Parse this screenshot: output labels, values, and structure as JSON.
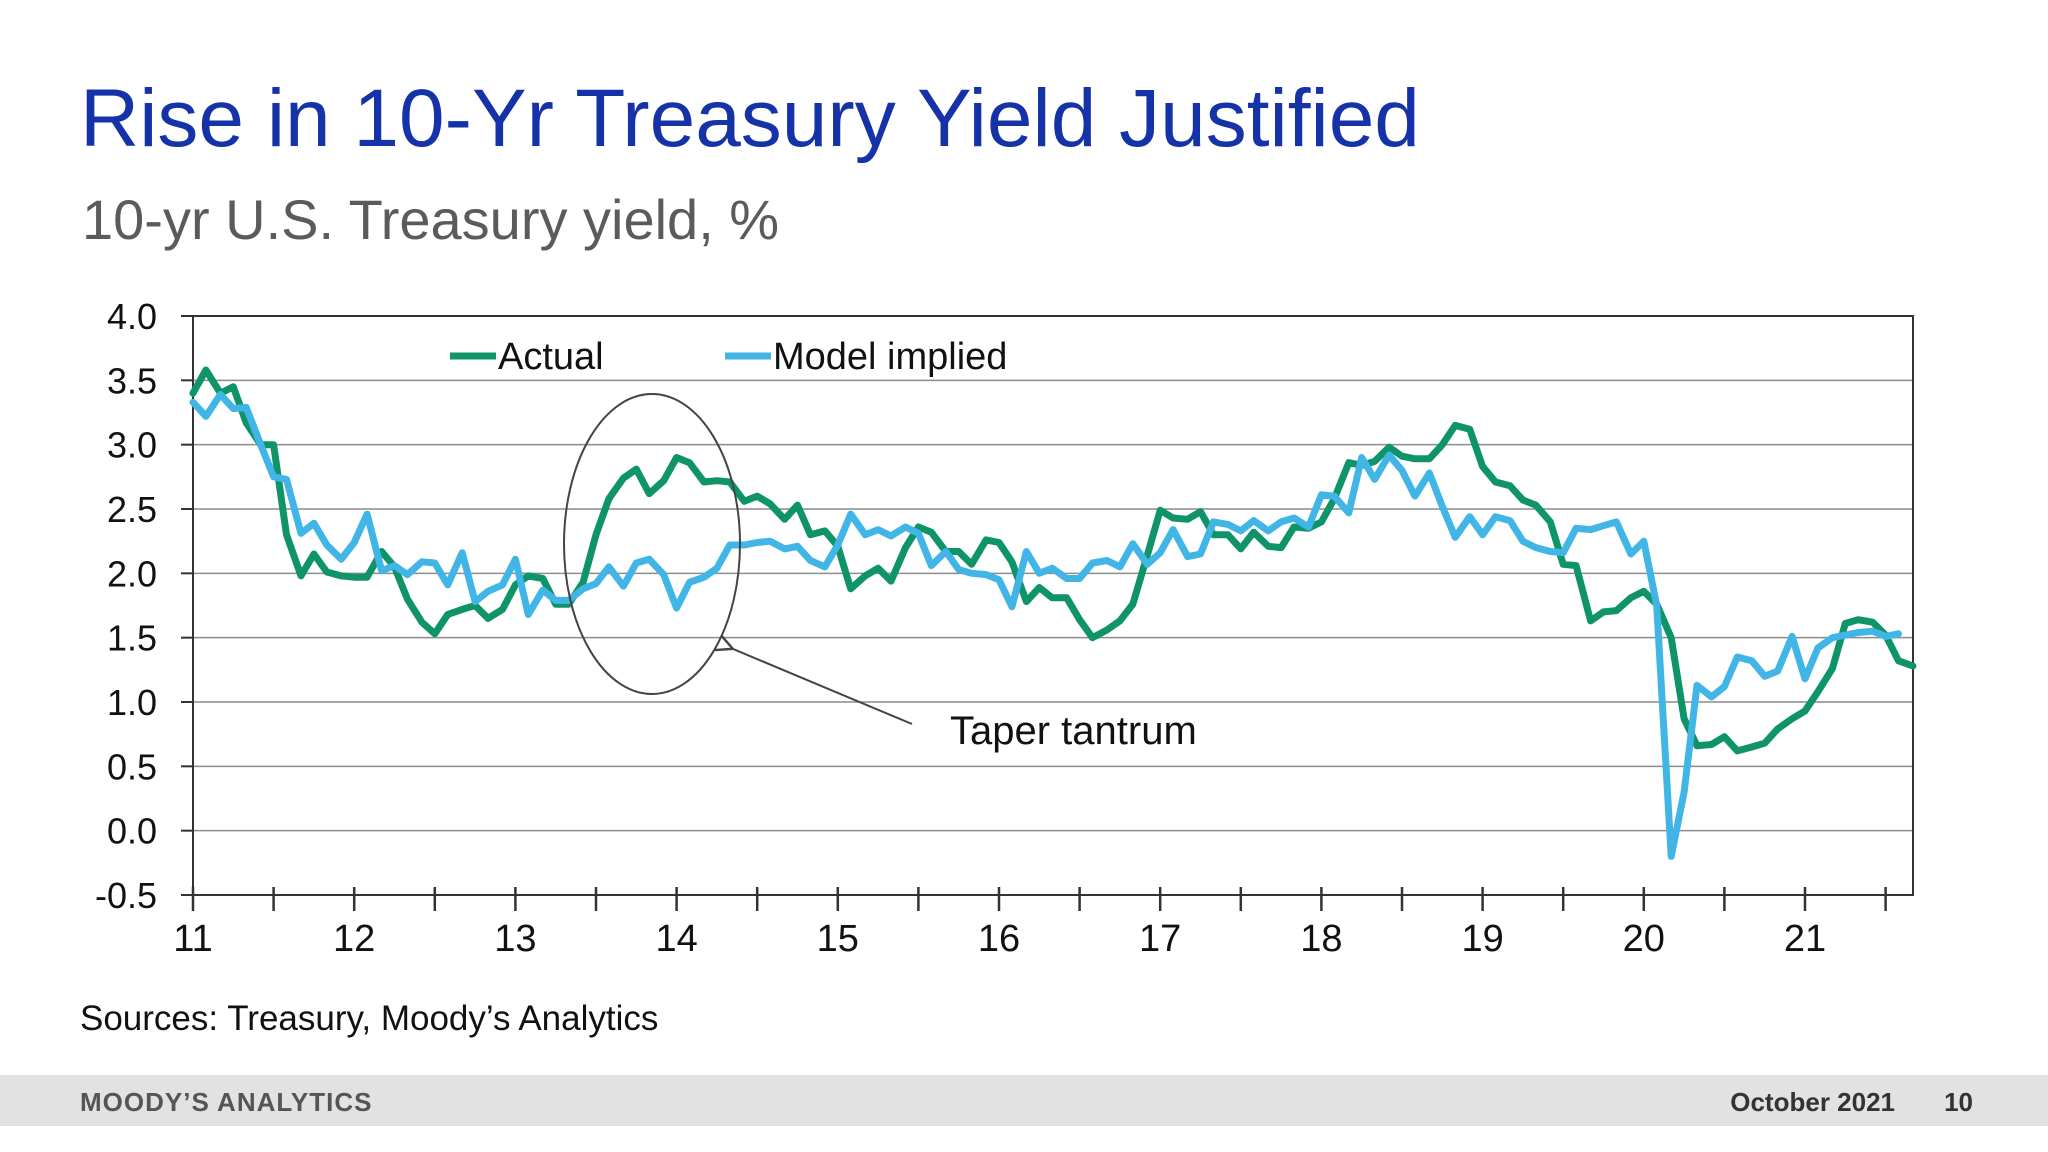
{
  "slide": {
    "title": "Rise in 10-Yr Treasury Yield Justified",
    "subtitle": "10-yr U.S. Treasury yield, %",
    "sources": "Sources: Treasury, Moody’s Analytics",
    "footer": {
      "brand": "MOODY’S ANALYTICS",
      "date": "October 2021",
      "page": "10"
    }
  },
  "chart_data": {
    "type": "line",
    "title": "",
    "xlabel": "",
    "ylabel": "",
    "xlim": [
      2011,
      2021.67
    ],
    "ylim": [
      -0.5,
      4.0
    ],
    "grid": true,
    "legend_placement": "top-left",
    "x_tick_labels": [
      "11",
      "12",
      "13",
      "14",
      "15",
      "16",
      "17",
      "18",
      "19",
      "20",
      "21"
    ],
    "y_tick_labels": [
      "4.0",
      "3.5",
      "3.0",
      "2.5",
      "2.0",
      "1.5",
      "1.0",
      "0.5",
      "0.0",
      "-0.5"
    ],
    "annotation": {
      "text": "Taper tantrum",
      "points_to": [
        2014.3,
        1.45
      ]
    },
    "series": [
      {
        "name": "Actual",
        "color": "#0e9468",
        "points": [
          [
            2011.0,
            3.4
          ],
          [
            2011.08,
            3.58
          ],
          [
            2011.17,
            3.4
          ],
          [
            2011.25,
            3.45
          ],
          [
            2011.33,
            3.17
          ],
          [
            2011.42,
            3.0
          ],
          [
            2011.5,
            3.0
          ],
          [
            2011.58,
            2.3
          ],
          [
            2011.67,
            1.98
          ],
          [
            2011.75,
            2.15
          ],
          [
            2011.83,
            2.01
          ],
          [
            2011.92,
            1.98
          ],
          [
            2012.0,
            1.97
          ],
          [
            2012.08,
            1.97
          ],
          [
            2012.17,
            2.17
          ],
          [
            2012.25,
            2.05
          ],
          [
            2012.33,
            1.8
          ],
          [
            2012.42,
            1.62
          ],
          [
            2012.5,
            1.53
          ],
          [
            2012.58,
            1.68
          ],
          [
            2012.67,
            1.72
          ],
          [
            2012.75,
            1.75
          ],
          [
            2012.83,
            1.65
          ],
          [
            2012.92,
            1.72
          ],
          [
            2013.0,
            1.91
          ],
          [
            2013.08,
            1.98
          ],
          [
            2013.17,
            1.96
          ],
          [
            2013.25,
            1.76
          ],
          [
            2013.33,
            1.76
          ],
          [
            2013.42,
            1.93
          ],
          [
            2013.5,
            2.3
          ],
          [
            2013.58,
            2.58
          ],
          [
            2013.67,
            2.74
          ],
          [
            2013.75,
            2.81
          ],
          [
            2013.83,
            2.62
          ],
          [
            2013.92,
            2.72
          ],
          [
            2014.0,
            2.9
          ],
          [
            2014.08,
            2.86
          ],
          [
            2014.17,
            2.71
          ],
          [
            2014.25,
            2.72
          ],
          [
            2014.33,
            2.71
          ],
          [
            2014.42,
            2.56
          ],
          [
            2014.5,
            2.6
          ],
          [
            2014.58,
            2.54
          ],
          [
            2014.67,
            2.42
          ],
          [
            2014.75,
            2.53
          ],
          [
            2014.83,
            2.3
          ],
          [
            2014.92,
            2.33
          ],
          [
            2015.0,
            2.21
          ],
          [
            2015.08,
            1.88
          ],
          [
            2015.17,
            1.98
          ],
          [
            2015.25,
            2.04
          ],
          [
            2015.33,
            1.94
          ],
          [
            2015.42,
            2.2
          ],
          [
            2015.5,
            2.36
          ],
          [
            2015.58,
            2.32
          ],
          [
            2015.67,
            2.17
          ],
          [
            2015.75,
            2.17
          ],
          [
            2015.83,
            2.07
          ],
          [
            2015.92,
            2.26
          ],
          [
            2016.0,
            2.24
          ],
          [
            2016.08,
            2.09
          ],
          [
            2016.17,
            1.78
          ],
          [
            2016.25,
            1.89
          ],
          [
            2016.33,
            1.81
          ],
          [
            2016.42,
            1.81
          ],
          [
            2016.5,
            1.64
          ],
          [
            2016.58,
            1.5
          ],
          [
            2016.67,
            1.56
          ],
          [
            2016.75,
            1.63
          ],
          [
            2016.83,
            1.76
          ],
          [
            2016.92,
            2.14
          ],
          [
            2017.0,
            2.49
          ],
          [
            2017.08,
            2.43
          ],
          [
            2017.17,
            2.42
          ],
          [
            2017.25,
            2.48
          ],
          [
            2017.33,
            2.3
          ],
          [
            2017.42,
            2.3
          ],
          [
            2017.5,
            2.19
          ],
          [
            2017.58,
            2.32
          ],
          [
            2017.67,
            2.21
          ],
          [
            2017.75,
            2.2
          ],
          [
            2017.83,
            2.36
          ],
          [
            2017.92,
            2.35
          ],
          [
            2018.0,
            2.4
          ],
          [
            2018.08,
            2.58
          ],
          [
            2018.17,
            2.86
          ],
          [
            2018.25,
            2.84
          ],
          [
            2018.33,
            2.87
          ],
          [
            2018.42,
            2.98
          ],
          [
            2018.5,
            2.91
          ],
          [
            2018.58,
            2.89
          ],
          [
            2018.67,
            2.89
          ],
          [
            2018.75,
            3.0
          ],
          [
            2018.83,
            3.15
          ],
          [
            2018.92,
            3.12
          ],
          [
            2019.0,
            2.83
          ],
          [
            2019.08,
            2.71
          ],
          [
            2019.17,
            2.68
          ],
          [
            2019.25,
            2.57
          ],
          [
            2019.33,
            2.53
          ],
          [
            2019.42,
            2.4
          ],
          [
            2019.5,
            2.07
          ],
          [
            2019.58,
            2.06
          ],
          [
            2019.67,
            1.63
          ],
          [
            2019.75,
            1.7
          ],
          [
            2019.83,
            1.71
          ],
          [
            2019.92,
            1.81
          ],
          [
            2020.0,
            1.86
          ],
          [
            2020.08,
            1.76
          ],
          [
            2020.17,
            1.5
          ],
          [
            2020.25,
            0.87
          ],
          [
            2020.33,
            0.66
          ],
          [
            2020.42,
            0.67
          ],
          [
            2020.5,
            0.73
          ],
          [
            2020.58,
            0.62
          ],
          [
            2020.67,
            0.65
          ],
          [
            2020.75,
            0.68
          ],
          [
            2020.83,
            0.79
          ],
          [
            2020.92,
            0.87
          ],
          [
            2021.0,
            0.93
          ],
          [
            2021.08,
            1.08
          ],
          [
            2021.17,
            1.26
          ],
          [
            2021.25,
            1.61
          ],
          [
            2021.33,
            1.64
          ],
          [
            2021.42,
            1.62
          ],
          [
            2021.5,
            1.52
          ],
          [
            2021.58,
            1.32
          ],
          [
            2021.67,
            1.28
          ],
          [
            2021.75,
            1.38
          ]
        ]
      },
      {
        "name": "Model implied",
        "color": "#41b6e6",
        "points": [
          [
            2011.0,
            3.33
          ],
          [
            2011.08,
            3.22
          ],
          [
            2011.17,
            3.39
          ],
          [
            2011.25,
            3.28
          ],
          [
            2011.33,
            3.29
          ],
          [
            2011.42,
            3.0
          ],
          [
            2011.5,
            2.75
          ],
          [
            2011.58,
            2.73
          ],
          [
            2011.67,
            2.31
          ],
          [
            2011.75,
            2.39
          ],
          [
            2011.83,
            2.22
          ],
          [
            2011.92,
            2.11
          ],
          [
            2012.0,
            2.24
          ],
          [
            2012.08,
            2.46
          ],
          [
            2012.17,
            2.02
          ],
          [
            2012.25,
            2.06
          ],
          [
            2012.33,
            1.99
          ],
          [
            2012.42,
            2.09
          ],
          [
            2012.5,
            2.08
          ],
          [
            2012.58,
            1.91
          ],
          [
            2012.67,
            2.16
          ],
          [
            2012.75,
            1.78
          ],
          [
            2012.83,
            1.86
          ],
          [
            2012.92,
            1.91
          ],
          [
            2013.0,
            2.11
          ],
          [
            2013.08,
            1.68
          ],
          [
            2013.17,
            1.87
          ],
          [
            2013.25,
            1.79
          ],
          [
            2013.33,
            1.79
          ],
          [
            2013.42,
            1.88
          ],
          [
            2013.5,
            1.92
          ],
          [
            2013.58,
            2.05
          ],
          [
            2013.67,
            1.9
          ],
          [
            2013.75,
            2.08
          ],
          [
            2013.83,
            2.11
          ],
          [
            2013.92,
            1.99
          ],
          [
            2014.0,
            1.73
          ],
          [
            2014.08,
            1.93
          ],
          [
            2014.17,
            1.97
          ],
          [
            2014.25,
            2.04
          ],
          [
            2014.33,
            2.22
          ],
          [
            2014.42,
            2.22
          ],
          [
            2014.5,
            2.24
          ],
          [
            2014.58,
            2.25
          ],
          [
            2014.67,
            2.19
          ],
          [
            2014.75,
            2.21
          ],
          [
            2014.83,
            2.1
          ],
          [
            2014.92,
            2.05
          ],
          [
            2015.0,
            2.22
          ],
          [
            2015.08,
            2.46
          ],
          [
            2015.17,
            2.3
          ],
          [
            2015.25,
            2.34
          ],
          [
            2015.33,
            2.29
          ],
          [
            2015.42,
            2.36
          ],
          [
            2015.5,
            2.31
          ],
          [
            2015.58,
            2.06
          ],
          [
            2015.67,
            2.17
          ],
          [
            2015.75,
            2.03
          ],
          [
            2015.83,
            2.0
          ],
          [
            2015.92,
            1.99
          ],
          [
            2016.0,
            1.95
          ],
          [
            2016.08,
            1.74
          ],
          [
            2016.17,
            2.17
          ],
          [
            2016.25,
            2.0
          ],
          [
            2016.33,
            2.04
          ],
          [
            2016.42,
            1.96
          ],
          [
            2016.5,
            1.96
          ],
          [
            2016.58,
            2.08
          ],
          [
            2016.67,
            2.1
          ],
          [
            2016.75,
            2.05
          ],
          [
            2016.83,
            2.23
          ],
          [
            2016.92,
            2.07
          ],
          [
            2017.0,
            2.16
          ],
          [
            2017.08,
            2.34
          ],
          [
            2017.17,
            2.13
          ],
          [
            2017.25,
            2.15
          ],
          [
            2017.33,
            2.4
          ],
          [
            2017.42,
            2.38
          ],
          [
            2017.5,
            2.33
          ],
          [
            2017.58,
            2.41
          ],
          [
            2017.67,
            2.33
          ],
          [
            2017.75,
            2.4
          ],
          [
            2017.83,
            2.43
          ],
          [
            2017.92,
            2.36
          ],
          [
            2018.0,
            2.61
          ],
          [
            2018.08,
            2.6
          ],
          [
            2018.17,
            2.47
          ],
          [
            2018.25,
            2.9
          ],
          [
            2018.33,
            2.73
          ],
          [
            2018.42,
            2.92
          ],
          [
            2018.5,
            2.8
          ],
          [
            2018.58,
            2.6
          ],
          [
            2018.67,
            2.78
          ],
          [
            2018.75,
            2.52
          ],
          [
            2018.83,
            2.28
          ],
          [
            2018.92,
            2.44
          ],
          [
            2019.0,
            2.3
          ],
          [
            2019.08,
            2.44
          ],
          [
            2019.17,
            2.41
          ],
          [
            2019.25,
            2.25
          ],
          [
            2019.33,
            2.2
          ],
          [
            2019.42,
            2.17
          ],
          [
            2019.5,
            2.16
          ],
          [
            2019.58,
            2.35
          ],
          [
            2019.67,
            2.34
          ],
          [
            2019.75,
            2.37
          ],
          [
            2019.83,
            2.4
          ],
          [
            2019.92,
            2.15
          ],
          [
            2020.0,
            2.25
          ],
          [
            2020.08,
            1.75
          ],
          [
            2020.17,
            -0.2
          ],
          [
            2020.25,
            0.3
          ],
          [
            2020.33,
            1.13
          ],
          [
            2020.42,
            1.04
          ],
          [
            2020.5,
            1.12
          ],
          [
            2020.58,
            1.35
          ],
          [
            2020.67,
            1.32
          ],
          [
            2020.75,
            1.2
          ],
          [
            2020.83,
            1.24
          ],
          [
            2020.92,
            1.51
          ],
          [
            2021.0,
            1.18
          ],
          [
            2021.08,
            1.42
          ],
          [
            2021.17,
            1.5
          ],
          [
            2021.25,
            1.52
          ],
          [
            2021.33,
            1.54
          ],
          [
            2021.42,
            1.55
          ],
          [
            2021.5,
            1.51
          ],
          [
            2021.58,
            1.53
          ]
        ]
      }
    ]
  }
}
